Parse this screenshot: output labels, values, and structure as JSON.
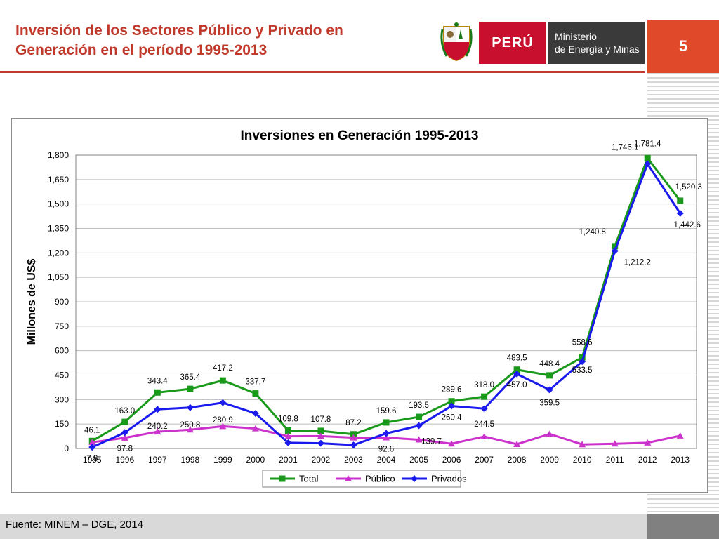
{
  "header": {
    "title_line1": "Inversión de los Sectores Público  y Privado en",
    "title_line2": "Generación en el período 1995-2013",
    "page_number": "5"
  },
  "logo": {
    "country": "PERÚ",
    "ministry_line1": "Ministerio",
    "ministry_line2": "de Energía y Minas"
  },
  "footer": {
    "source": "Fuente: MINEM – DGE, 2014"
  },
  "colors": {
    "accent": "#c0392b",
    "total": "#1a9a1a",
    "publico": "#cc33cc",
    "privados": "#1a1aee"
  },
  "chart_data": {
    "type": "line",
    "title": "Inversiones en Generación  1995-2013",
    "xlabel": "",
    "ylabel": "Millones de US$",
    "ylim": [
      0,
      1800
    ],
    "yticks": [
      "0",
      "150",
      "300",
      "450",
      "600",
      "750",
      "900",
      "1,050",
      "1,200",
      "1,350",
      "1,500",
      "1,650",
      "1,800"
    ],
    "categories": [
      "1995",
      "1996",
      "1997",
      "1998",
      "1999",
      "2000",
      "2001",
      "2002",
      "2003",
      "2004",
      "2005",
      "2006",
      "2007",
      "2008",
      "2009",
      "2010",
      "2011",
      "2012",
      "2013"
    ],
    "grid": true,
    "legend_position": "bottom",
    "series": [
      {
        "name": "Total",
        "values": [
          46.1,
          163.0,
          343.4,
          365.4,
          417.2,
          337.7,
          109.8,
          107.8,
          87.2,
          159.6,
          193.5,
          289.6,
          318.0,
          483.5,
          448.4,
          558.6,
          1240.8,
          1781.4,
          1520.3
        ],
        "labels": [
          "46.1",
          "163.0",
          "343.4",
          "365.4",
          "417.2",
          "337.7",
          "109.8",
          "107.8",
          "87.2",
          "159.6",
          "193.5",
          "289.6",
          "318.0",
          "483.5",
          "448.4",
          "558.6",
          "1,240.8",
          "1,781.4",
          "1,520.3"
        ]
      },
      {
        "name": "Público",
        "values": [
          38,
          65,
          103,
          115,
          136,
          122,
          75,
          76,
          66,
          67,
          54,
          29,
          73,
          26,
          89,
          25,
          29,
          35,
          78
        ],
        "labels": []
      },
      {
        "name": "Privados",
        "values": [
          7.8,
          97.8,
          240.2,
          250.8,
          280.9,
          215.0,
          34.8,
          31.8,
          21.2,
          92.6,
          139.7,
          260.4,
          244.5,
          457.0,
          359.5,
          533.5,
          1212.2,
          1746.1,
          1442.6
        ],
        "labels": [
          "7.8",
          "97.8",
          "240.2",
          "250.8",
          "280.9",
          "",
          "",
          "",
          "",
          "92.6",
          "139.7",
          "260.4",
          "244.5",
          "457.0",
          "359.5",
          "533.5",
          "1,212.2",
          "1,746.1",
          "1,442.6"
        ]
      }
    ]
  }
}
